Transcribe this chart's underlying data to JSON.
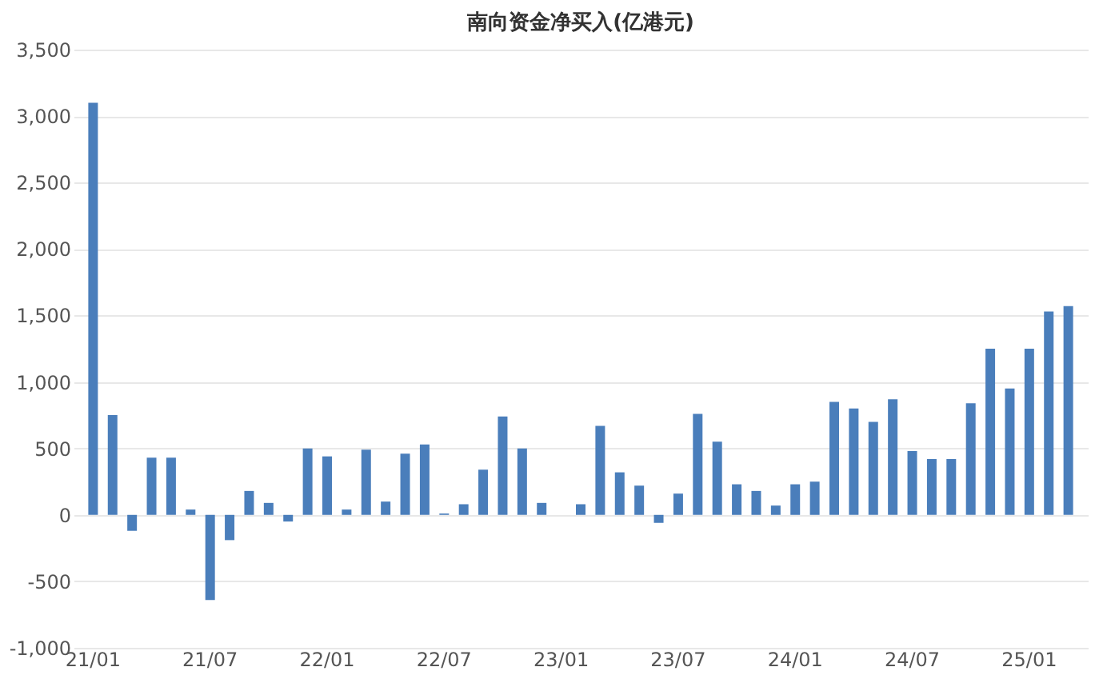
{
  "chart_data": {
    "type": "bar",
    "title": "南向资金净买入(亿港元)",
    "categories": [
      "21/01",
      null,
      null,
      null,
      null,
      null,
      "21/07",
      null,
      null,
      null,
      null,
      null,
      "22/01",
      null,
      null,
      null,
      null,
      null,
      "22/07",
      null,
      null,
      null,
      null,
      null,
      "23/01",
      null,
      null,
      null,
      null,
      null,
      "23/07",
      null,
      null,
      null,
      null,
      null,
      "24/01",
      null,
      null,
      null,
      null,
      null,
      "24/07",
      null,
      null,
      null,
      null,
      null,
      "25/01",
      null,
      null
    ],
    "values": [
      3100,
      750,
      -120,
      430,
      430,
      40,
      -640,
      -190,
      180,
      90,
      -50,
      500,
      440,
      40,
      490,
      100,
      460,
      530,
      10,
      80,
      340,
      740,
      500,
      90,
      0,
      80,
      670,
      320,
      220,
      -60,
      160,
      760,
      550,
      230,
      180,
      70,
      230,
      250,
      850,
      800,
      700,
      870,
      480,
      420,
      420,
      840,
      1250,
      950,
      1250,
      1530,
      1570
    ],
    "color": "#4a7ebb",
    "ylim": [
      -1000,
      3500
    ],
    "yticks": [
      {
        "value": -1000,
        "label": "-1,000"
      },
      {
        "value": -500,
        "label": "-500"
      },
      0,
      500,
      {
        "value": 1000,
        "label": "1,000"
      },
      {
        "value": 1500,
        "label": "1,500"
      },
      {
        "value": 2000,
        "label": "2,000"
      },
      {
        "value": 2500,
        "label": "2,500"
      },
      {
        "value": 3000,
        "label": "3,000"
      },
      {
        "value": 3500,
        "label": "3,500"
      }
    ],
    "grid": "y"
  }
}
